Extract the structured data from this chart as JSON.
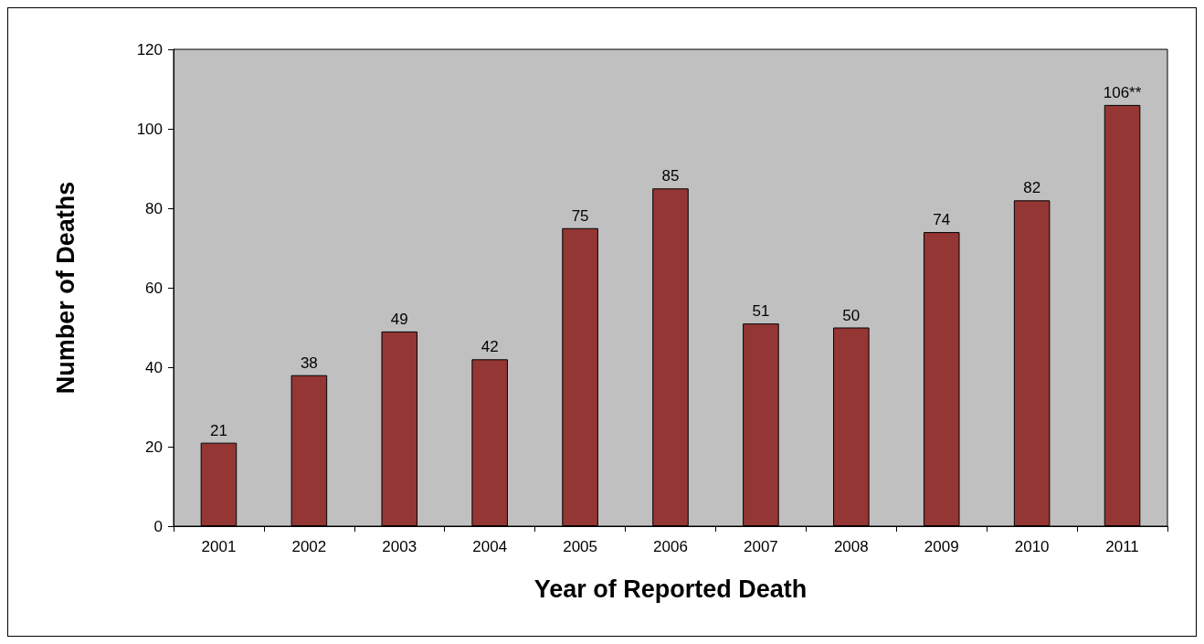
{
  "chart_data": {
    "type": "bar",
    "xlabel": "Year of Reported Death",
    "ylabel": "Number of Deaths",
    "categories": [
      "2001",
      "2002",
      "2003",
      "2004",
      "2005",
      "2006",
      "2007",
      "2008",
      "2009",
      "2010",
      "2011"
    ],
    "values": [
      21,
      38,
      49,
      42,
      75,
      85,
      51,
      50,
      74,
      82,
      106
    ],
    "value_labels": [
      "21",
      "38",
      "49",
      "42",
      "75",
      "85",
      "51",
      "50",
      "74",
      "82",
      "106**"
    ],
    "color": "#943634",
    "ylim": [
      0,
      120
    ],
    "yticks": [
      0,
      20,
      40,
      60,
      80,
      100,
      120
    ],
    "grid": false
  }
}
